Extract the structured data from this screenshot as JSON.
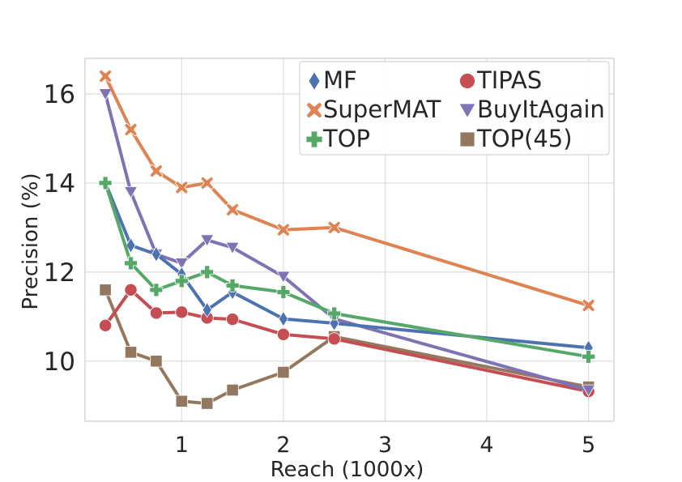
{
  "chart_data": {
    "type": "line",
    "title": "",
    "xlabel": "Reach (1000x)",
    "ylabel": "Precision (%)",
    "xlim": [
      0.05,
      5.25
    ],
    "ylim": [
      8.65,
      16.8
    ],
    "xticks": [
      1,
      2,
      3,
      4,
      5
    ],
    "xtick_labels": [
      "1",
      "2",
      "3",
      "4",
      "5"
    ],
    "yticks": [
      10,
      12,
      14,
      16
    ],
    "ytick_labels": [
      "10",
      "12",
      "14",
      "16"
    ],
    "grid": true,
    "legend_position": "top-right",
    "x": [
      0.25,
      0.5,
      0.75,
      1.0,
      1.25,
      1.5,
      2.0,
      2.5,
      5.0
    ],
    "series": [
      {
        "name": "MF",
        "marker": "diamond",
        "color": "#4c72b0",
        "values": [
          14.0,
          12.6,
          12.4,
          11.95,
          11.15,
          11.55,
          10.95,
          10.85,
          10.3
        ]
      },
      {
        "name": "TIPAS",
        "marker": "circle",
        "color": "#c44e52",
        "values": [
          10.8,
          11.6,
          11.08,
          11.1,
          10.97,
          10.94,
          10.6,
          10.5,
          9.32
        ]
      },
      {
        "name": "SuperMAT",
        "marker": "x",
        "color": "#dd8452",
        "values": [
          16.4,
          15.2,
          14.27,
          13.9,
          14.0,
          13.4,
          12.95,
          13.0,
          11.25
        ]
      },
      {
        "name": "BuyItAgain",
        "marker": "triangle-down",
        "color": "#8172b3",
        "values": [
          16.0,
          13.8,
          12.4,
          12.2,
          12.72,
          12.55,
          11.9,
          10.95,
          9.35
        ]
      },
      {
        "name": "TOP",
        "marker": "plus",
        "color": "#55a868",
        "values": [
          14.0,
          12.2,
          11.6,
          11.8,
          12.0,
          11.7,
          11.55,
          11.07,
          10.1
        ]
      },
      {
        "name": "TOP(45)",
        "marker": "square",
        "color": "#937860",
        "values": [
          11.6,
          10.2,
          10.0,
          9.1,
          9.05,
          9.35,
          9.75,
          10.55,
          9.42
        ]
      }
    ]
  }
}
